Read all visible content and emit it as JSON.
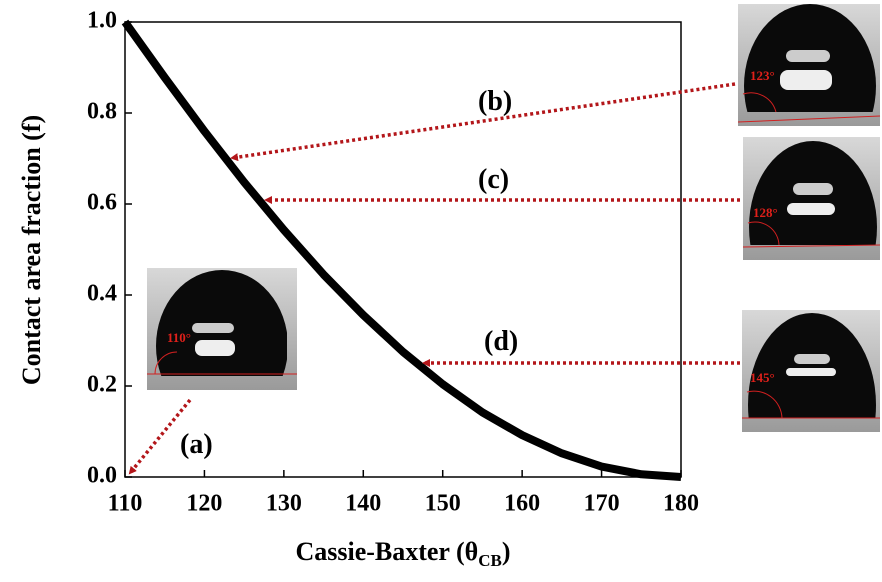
{
  "chart_data": {
    "type": "line",
    "ylabel": "Contact area fraction (f)",
    "xlabel": [
      "Cassie-Baxter (θ",
      "CB",
      ")"
    ],
    "x": [
      110,
      115,
      120,
      125,
      130,
      135,
      140,
      145,
      150,
      155,
      160,
      165,
      170,
      175,
      180
    ],
    "series": [
      {
        "color": "#000000",
        "values": [
          1.0,
          0.878,
          0.76,
          0.648,
          0.543,
          0.445,
          0.356,
          0.275,
          0.204,
          0.142,
          0.092,
          0.052,
          0.023,
          0.006,
          0.0
        ]
      }
    ],
    "xlim": [
      110,
      180
    ],
    "xticks": [
      110,
      120,
      130,
      140,
      150,
      160,
      170,
      180
    ],
    "ylim": [
      0,
      1.0
    ],
    "yticks": [
      {
        "value": 0,
        "label": "0.0"
      },
      {
        "value": 0.2,
        "label": "0.2"
      },
      {
        "value": 0.4,
        "label": "0.4"
      },
      {
        "value": 0.6,
        "label": "0.6"
      },
      {
        "value": 0.8,
        "label": "0.8"
      },
      {
        "value": 1.0,
        "label": "1.0"
      }
    ],
    "annotations": [
      {
        "label": "(a)",
        "angle": "110°"
      },
      {
        "label": "(b)",
        "angle": "123°"
      },
      {
        "label": "(c)",
        "angle": "128°"
      },
      {
        "label": "(d)",
        "angle": "145°"
      }
    ]
  }
}
